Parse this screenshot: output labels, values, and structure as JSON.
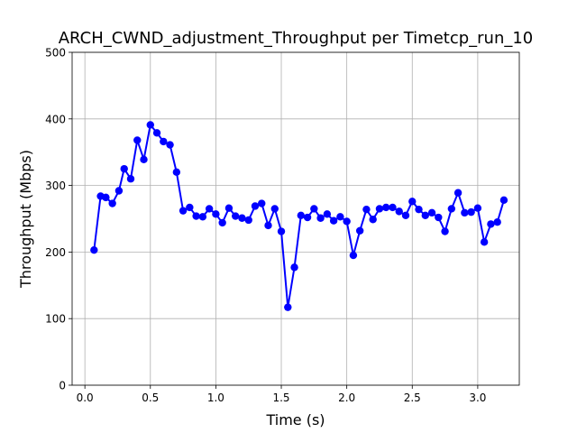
{
  "chart_data": {
    "type": "line",
    "title": "ARCH_CWND_adjustment_Throughput per Timetcp_run_10",
    "xlabel": "Time (s)",
    "ylabel": "Throughput (Mbps)",
    "xlim": [
      -0.0975,
      3.3175
    ],
    "ylim": [
      0,
      500
    ],
    "xticks": [
      0.0,
      0.5,
      1.0,
      1.5,
      2.0,
      2.5,
      3.0
    ],
    "xtick_labels": [
      "0.0",
      "0.5",
      "1.0",
      "1.5",
      "2.0",
      "2.5",
      "3.0"
    ],
    "yticks": [
      0,
      100,
      200,
      300,
      400,
      500
    ],
    "ytick_labels": [
      "0",
      "100",
      "200",
      "300",
      "400",
      "500"
    ],
    "grid": true,
    "series": [
      {
        "color": "#0000ff",
        "marker": "circle",
        "x": [
          0.07,
          0.12,
          0.16,
          0.21,
          0.26,
          0.3,
          0.35,
          0.4,
          0.45,
          0.5,
          0.55,
          0.6,
          0.65,
          0.7,
          0.75,
          0.8,
          0.85,
          0.9,
          0.95,
          1.0,
          1.05,
          1.1,
          1.15,
          1.2,
          1.25,
          1.3,
          1.35,
          1.4,
          1.45,
          1.5,
          1.55,
          1.6,
          1.65,
          1.7,
          1.75,
          1.8,
          1.85,
          1.9,
          1.95,
          2.0,
          2.05,
          2.1,
          2.15,
          2.2,
          2.25,
          2.3,
          2.35,
          2.4,
          2.45,
          2.5,
          2.55,
          2.6,
          2.65,
          2.7,
          2.75,
          2.8,
          2.85,
          2.9,
          2.95,
          3.0,
          3.05,
          3.1,
          3.15,
          3.2
        ],
        "y": [
          203,
          284,
          282,
          273,
          292,
          325,
          310,
          368,
          339,
          391,
          379,
          366,
          361,
          320,
          262,
          267,
          254,
          253,
          265,
          257,
          244,
          266,
          254,
          251,
          248,
          269,
          273,
          240,
          265,
          231,
          117,
          177,
          255,
          252,
          265,
          251,
          257,
          247,
          253,
          246,
          195,
          232,
          264,
          249,
          265,
          267,
          267,
          261,
          255,
          276,
          264,
          255,
          259,
          252,
          231,
          265,
          289,
          259,
          260,
          266,
          215,
          242,
          245,
          278
        ]
      }
    ]
  }
}
